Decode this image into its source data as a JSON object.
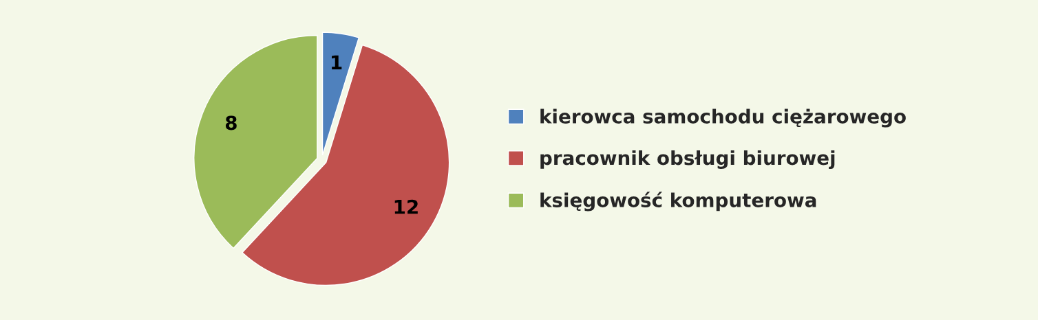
{
  "chart_data": {
    "type": "pie",
    "categories": [
      "kierowca samochodu ciężarowego",
      "pracownik obsługi biurowej",
      "księgowość komputerowa"
    ],
    "values": [
      1,
      12,
      8
    ],
    "colors": [
      "#4f81bd",
      "#c0504d",
      "#9bbb59"
    ],
    "data_labels": true,
    "legend": "right"
  }
}
